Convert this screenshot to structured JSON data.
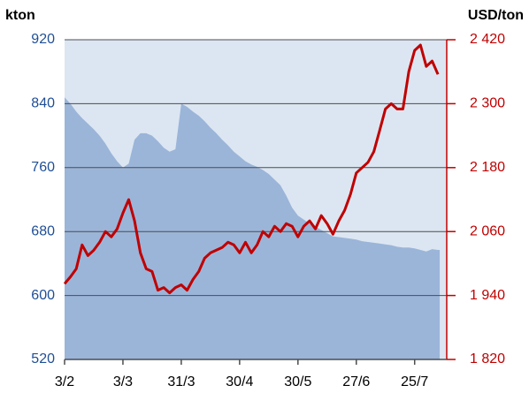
{
  "chart_data": {
    "type": "combo",
    "ylabel": "kton",
    "y2label": "USD/ton",
    "x": [
      0,
      2,
      4,
      6,
      8,
      10,
      12,
      14,
      16,
      18,
      20,
      22,
      24,
      26,
      28,
      30,
      32,
      34,
      36,
      38,
      40,
      42,
      44,
      46,
      48,
      50,
      52,
      54,
      56,
      58,
      60,
      62,
      64,
      66,
      68,
      70,
      72,
      74,
      76,
      78,
      80,
      82,
      84,
      86,
      88,
      90,
      92,
      94,
      96,
      98,
      100,
      102,
      104,
      106,
      108,
      110,
      112,
      114,
      116,
      118,
      120,
      122,
      124,
      126,
      128
    ],
    "xlim": [
      0,
      131
    ],
    "xticks": [
      {
        "value": 0,
        "label": "3/2"
      },
      {
        "value": 20,
        "label": "3/3"
      },
      {
        "value": 40,
        "label": "31/3"
      },
      {
        "value": 60,
        "label": "30/4"
      },
      {
        "value": 80,
        "label": "30/5"
      },
      {
        "value": 100,
        "label": "27/6"
      },
      {
        "value": 120,
        "label": "25/7"
      }
    ],
    "ylim": [
      520,
      920
    ],
    "yticks": [
      520,
      600,
      680,
      760,
      840,
      920
    ],
    "y2lim": [
      1820,
      2420
    ],
    "y2ticks": [
      {
        "value": 1820,
        "label": "1 820"
      },
      {
        "value": 1940,
        "label": "1 940"
      },
      {
        "value": 2060,
        "label": "2 060"
      },
      {
        "value": 2180,
        "label": "2 180"
      },
      {
        "value": 2300,
        "label": "2 300"
      },
      {
        "value": 2420,
        "label": "2 420"
      }
    ],
    "grid": true,
    "series": [
      {
        "type": "area",
        "color": "#9bb5d9",
        "values": [
          848,
          840,
          830,
          822,
          815,
          808,
          800,
          790,
          778,
          768,
          760,
          765,
          795,
          803,
          803,
          800,
          793,
          785,
          780,
          783,
          840,
          836,
          830,
          825,
          818,
          810,
          803,
          795,
          788,
          780,
          774,
          768,
          764,
          761,
          757,
          752,
          745,
          738,
          725,
          710,
          700,
          695,
          690,
          686,
          682,
          678,
          674,
          673,
          672,
          671,
          670,
          668,
          667,
          666,
          665,
          664,
          663,
          661,
          660,
          660,
          659,
          657,
          655,
          658,
          657
        ]
      },
      {
        "type": "line",
        "axis": "y2",
        "color": "#c00000",
        "values": [
          1962,
          1975,
          1990,
          2035,
          2015,
          2025,
          2040,
          2060,
          2050,
          2065,
          2095,
          2120,
          2080,
          2020,
          1990,
          1985,
          1950,
          1955,
          1945,
          1955,
          1960,
          1950,
          1970,
          1985,
          2010,
          2020,
          2025,
          2030,
          2040,
          2035,
          2020,
          2040,
          2020,
          2035,
          2060,
          2050,
          2070,
          2060,
          2075,
          2070,
          2050,
          2070,
          2080,
          2065,
          2090,
          2075,
          2055,
          2080,
          2100,
          2130,
          2170,
          2180,
          2190,
          2210,
          2250,
          2290,
          2300,
          2290,
          2290,
          2360,
          2400,
          2410,
          2370,
          2380,
          2355
        ]
      }
    ]
  }
}
